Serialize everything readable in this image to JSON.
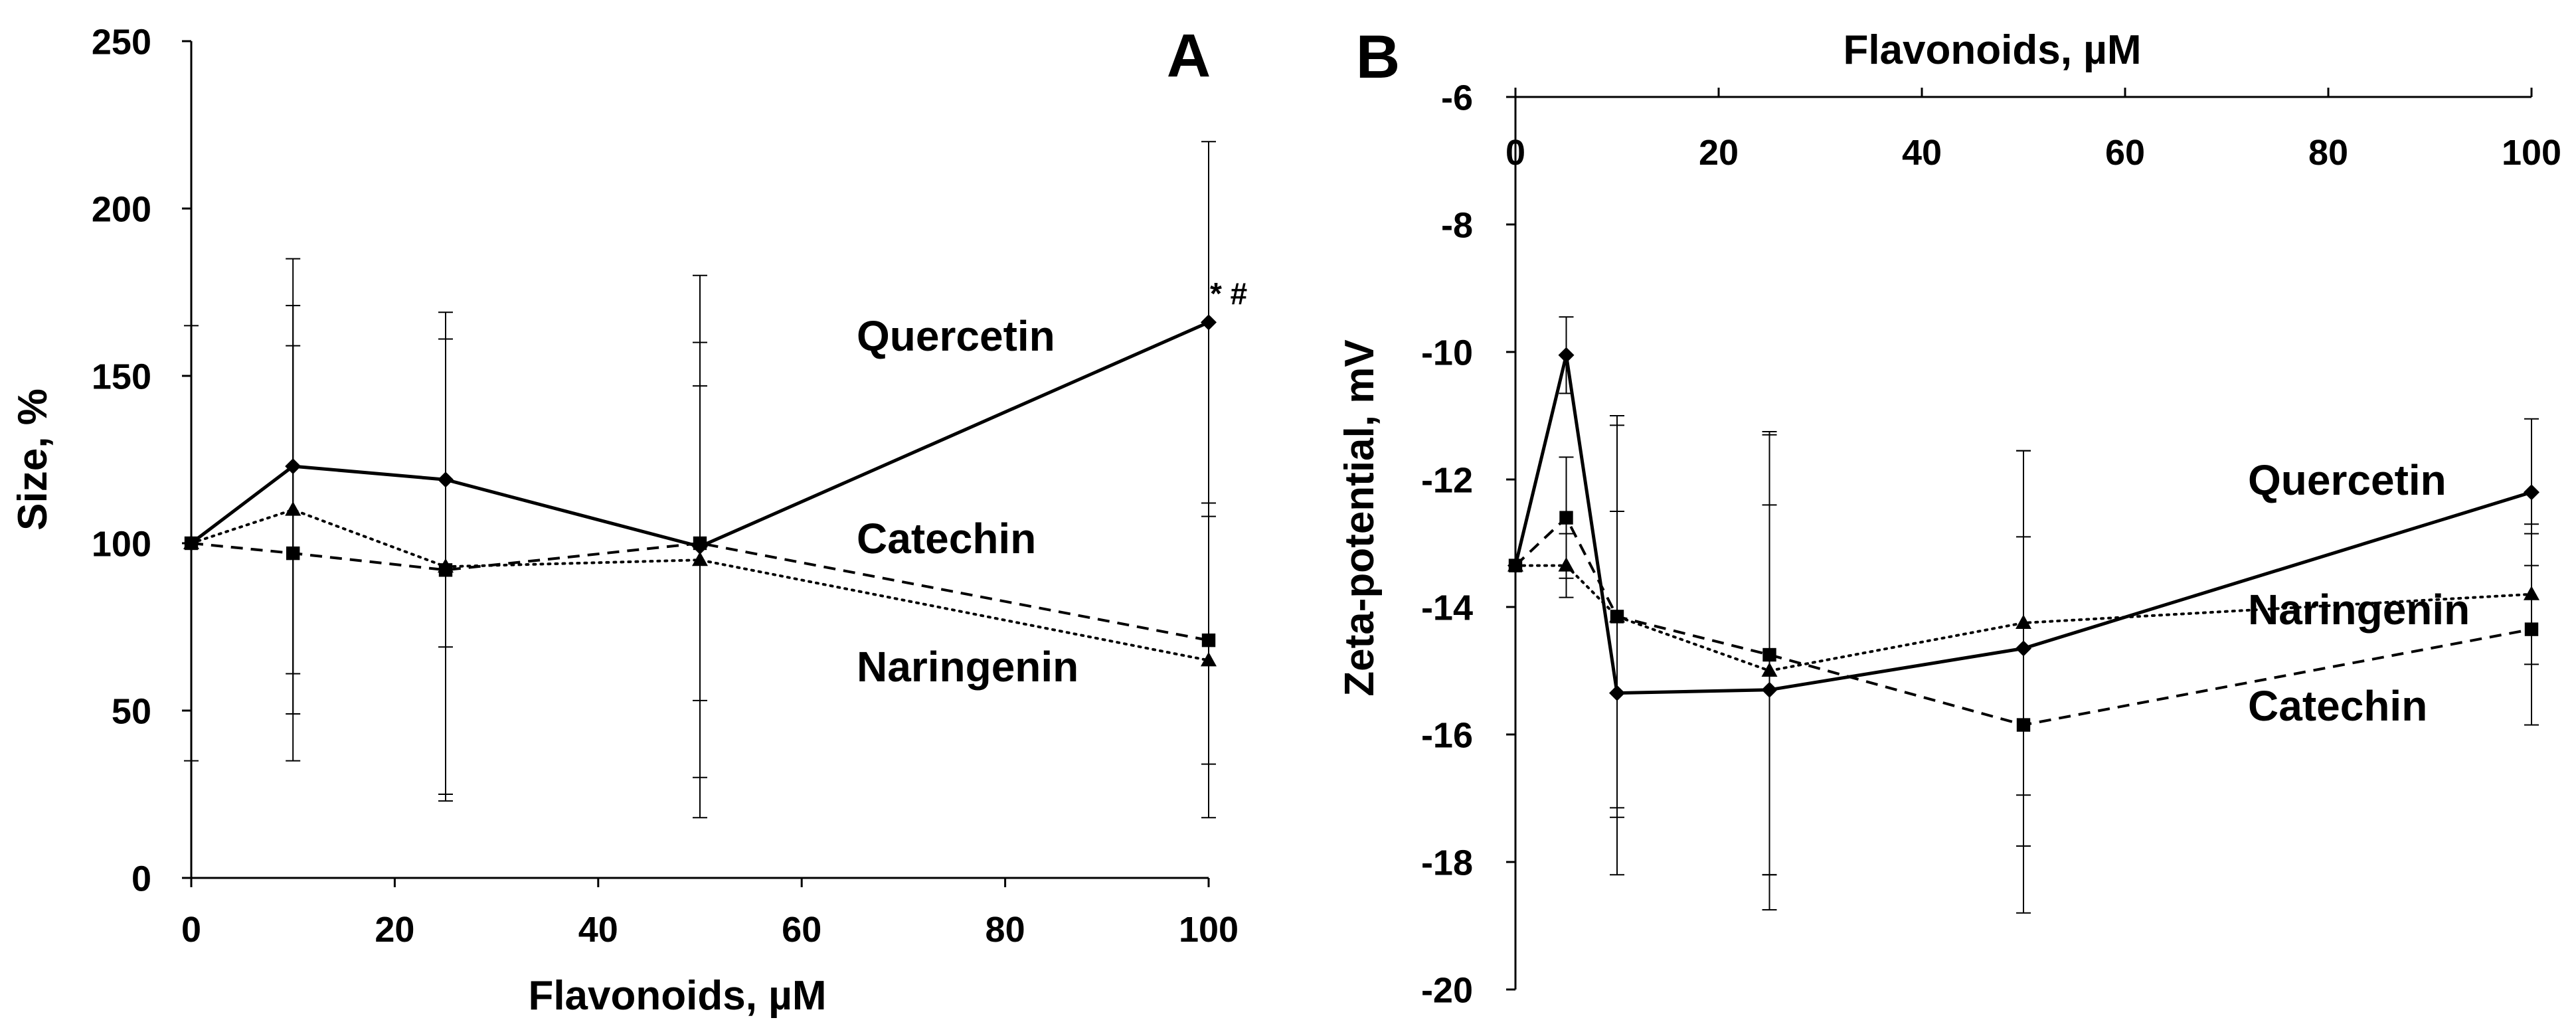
{
  "chart_data": [
    {
      "panel_label": "A",
      "type": "line",
      "xlabel": "Flavonoids, µM",
      "ylabel": "Size, %",
      "xlim": [
        0,
        100
      ],
      "ylim": [
        0,
        250
      ],
      "x_ticks": [
        0,
        20,
        40,
        60,
        80,
        100
      ],
      "y_ticks": [
        0,
        50,
        100,
        150,
        200,
        250
      ],
      "grid": false,
      "annotation": "* #",
      "series": [
        {
          "name": "Quercetin",
          "marker": "diamond",
          "line_style": "solid",
          "x": [
            0,
            10,
            25,
            50,
            100
          ],
          "y": [
            100,
            123,
            119,
            99,
            166
          ],
          "err": [
            65,
            62,
            50,
            81,
            54
          ]
        },
        {
          "name": "Catechin",
          "marker": "square",
          "line_style": "dashed",
          "x": [
            0,
            10,
            25,
            50,
            100
          ],
          "y": [
            100,
            97,
            92,
            100,
            71
          ],
          "err": [
            0,
            62,
            69,
            47,
            37
          ]
        },
        {
          "name": "Naringenin",
          "marker": "triangle",
          "line_style": "dotted",
          "x": [
            0,
            10,
            25,
            50,
            100
          ],
          "y": [
            100,
            110,
            93,
            95,
            65
          ],
          "err": [
            0,
            61,
            68,
            65,
            47
          ]
        }
      ]
    },
    {
      "panel_label": "B",
      "type": "line",
      "xlabel": "Flavonoids, µM",
      "ylabel": "Zeta-potential, mV",
      "x_axis_position": "top",
      "xlim": [
        0,
        100
      ],
      "ylim": [
        -20,
        -6
      ],
      "x_ticks": [
        0,
        20,
        40,
        60,
        80,
        100
      ],
      "y_ticks": [
        -6,
        -8,
        -10,
        -12,
        -14,
        -16,
        -18,
        -20
      ],
      "grid": false,
      "series": [
        {
          "name": "Quercetin",
          "marker": "diamond",
          "line_style": "solid",
          "x": [
            0,
            5,
            10,
            25,
            50,
            100
          ],
          "y": [
            -13.35,
            -10.05,
            -15.35,
            -15.3,
            -14.65,
            -12.2
          ],
          "err": [
            0,
            0.6,
            2.85,
            2.9,
            3.1,
            1.15
          ]
        },
        {
          "name": "Catechin",
          "marker": "square",
          "line_style": "dashed",
          "x": [
            0,
            5,
            10,
            25,
            50,
            100
          ],
          "y": [
            -13.35,
            -12.6,
            -14.15,
            -14.75,
            -15.85,
            -14.35
          ],
          "err": [
            0,
            0.95,
            3.0,
            3.45,
            2.95,
            1.5
          ]
        },
        {
          "name": "Naringenin",
          "marker": "triangle",
          "line_style": "dotted",
          "x": [
            0,
            5,
            10,
            25,
            50,
            100
          ],
          "y": [
            -13.35,
            -13.35,
            -14.15,
            -15.0,
            -14.25,
            -13.8
          ],
          "err": [
            0,
            0.5,
            3.15,
            3.75,
            2.7,
            1.1
          ]
        }
      ]
    }
  ]
}
